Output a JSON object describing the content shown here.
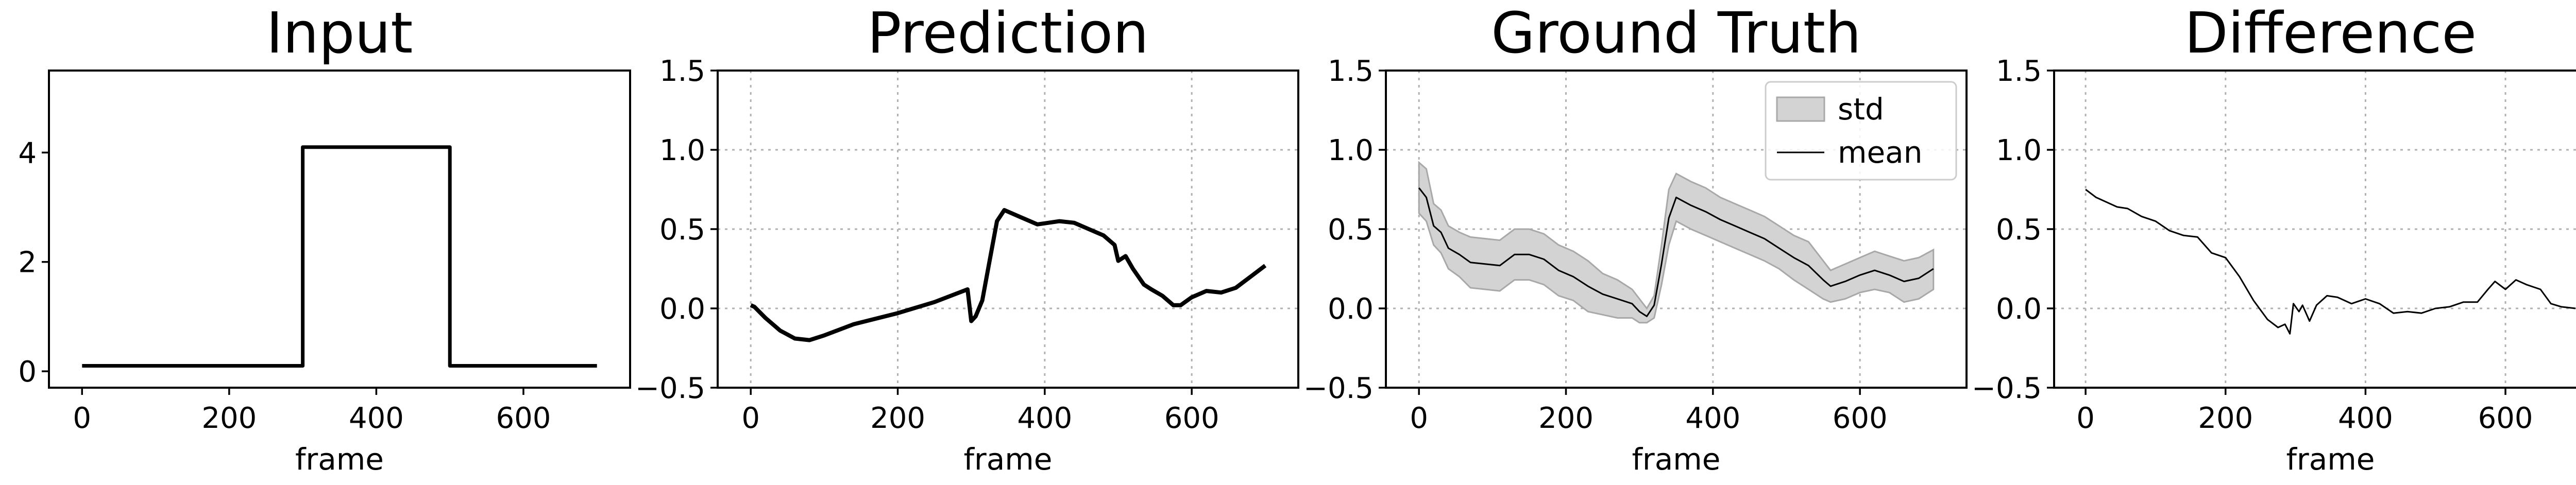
{
  "chart_data": [
    {
      "type": "line",
      "title": "Input",
      "xlabel": "frame",
      "ylabel": "",
      "xlim": [
        -45,
        745
      ],
      "ylim": [
        -0.3,
        5.5
      ],
      "xticks": [
        0,
        200,
        400,
        600
      ],
      "yticks": [
        0,
        2,
        4
      ],
      "grid": false,
      "series": [
        {
          "values": [
            [
              0,
              0.1
            ],
            [
              300,
              0.1
            ],
            [
              300,
              4.1
            ],
            [
              500,
              4.1
            ],
            [
              500,
              0.1
            ],
            [
              700,
              0.1
            ]
          ]
        }
      ]
    },
    {
      "type": "line",
      "title": "Prediction",
      "xlabel": "frame",
      "ylabel": "",
      "xlim": [
        -45,
        745
      ],
      "ylim": [
        -0.5,
        1.5
      ],
      "xticks": [
        0,
        200,
        400,
        600
      ],
      "yticks": [
        -0.5,
        0.0,
        0.5,
        1.0,
        1.5
      ],
      "grid": true,
      "series": [
        {
          "values": [
            [
              0,
              0.02
            ],
            [
              5,
              0.01
            ],
            [
              20,
              -0.06
            ],
            [
              40,
              -0.14
            ],
            [
              60,
              -0.19
            ],
            [
              80,
              -0.2
            ],
            [
              100,
              -0.17
            ],
            [
              140,
              -0.1
            ],
            [
              200,
              -0.03
            ],
            [
              250,
              0.04
            ],
            [
              295,
              0.12
            ],
            [
              300,
              -0.08
            ],
            [
              306,
              -0.05
            ],
            [
              315,
              0.05
            ],
            [
              325,
              0.3
            ],
            [
              335,
              0.55
            ],
            [
              345,
              0.62
            ],
            [
              365,
              0.58
            ],
            [
              390,
              0.53
            ],
            [
              420,
              0.55
            ],
            [
              440,
              0.54
            ],
            [
              460,
              0.5
            ],
            [
              480,
              0.46
            ],
            [
              495,
              0.4
            ],
            [
              500,
              0.3
            ],
            [
              510,
              0.33
            ],
            [
              520,
              0.25
            ],
            [
              535,
              0.15
            ],
            [
              545,
              0.12
            ],
            [
              560,
              0.08
            ],
            [
              575,
              0.02
            ],
            [
              585,
              0.02
            ],
            [
              600,
              0.07
            ],
            [
              620,
              0.11
            ],
            [
              640,
              0.1
            ],
            [
              660,
              0.13
            ],
            [
              680,
              0.2
            ],
            [
              700,
              0.27
            ]
          ]
        }
      ]
    },
    {
      "type": "area",
      "title": "Ground Truth",
      "xlabel": "frame",
      "ylabel": "",
      "xlim": [
        -45,
        745
      ],
      "ylim": [
        -0.5,
        1.5
      ],
      "xticks": [
        0,
        200,
        400,
        600
      ],
      "yticks": [
        -0.5,
        0.0,
        0.5,
        1.0,
        1.5
      ],
      "grid": true,
      "legend": {
        "position": "top-right",
        "entries": [
          "std",
          "mean"
        ]
      },
      "series": [
        {
          "name": "std",
          "x": [
            0,
            10,
            20,
            30,
            40,
            55,
            70,
            90,
            110,
            130,
            150,
            170,
            190,
            210,
            230,
            250,
            270,
            290,
            300,
            310,
            320,
            330,
            340,
            350,
            370,
            390,
            410,
            430,
            450,
            470,
            490,
            510,
            530,
            550,
            560,
            580,
            600,
            620,
            640,
            660,
            680,
            700
          ],
          "upper": [
            0.92,
            0.88,
            0.66,
            0.62,
            0.52,
            0.48,
            0.45,
            0.44,
            0.43,
            0.5,
            0.5,
            0.47,
            0.4,
            0.36,
            0.3,
            0.22,
            0.18,
            0.12,
            0.06,
            0.0,
            0.08,
            0.4,
            0.75,
            0.85,
            0.8,
            0.76,
            0.7,
            0.66,
            0.62,
            0.58,
            0.52,
            0.46,
            0.42,
            0.3,
            0.24,
            0.28,
            0.32,
            0.36,
            0.33,
            0.3,
            0.32,
            0.37
          ],
          "lower": [
            0.6,
            0.55,
            0.4,
            0.35,
            0.25,
            0.2,
            0.13,
            0.12,
            0.11,
            0.18,
            0.18,
            0.15,
            0.08,
            0.05,
            -0.02,
            -0.04,
            -0.06,
            -0.06,
            -0.09,
            -0.09,
            -0.06,
            0.15,
            0.4,
            0.55,
            0.5,
            0.46,
            0.42,
            0.38,
            0.34,
            0.3,
            0.25,
            0.18,
            0.12,
            0.06,
            0.04,
            0.06,
            0.1,
            0.12,
            0.1,
            0.04,
            0.06,
            0.12
          ]
        },
        {
          "name": "mean",
          "x": [
            0,
            10,
            20,
            30,
            40,
            55,
            70,
            90,
            110,
            130,
            150,
            170,
            190,
            210,
            230,
            250,
            270,
            290,
            300,
            310,
            320,
            330,
            340,
            350,
            370,
            390,
            410,
            430,
            450,
            470,
            490,
            510,
            530,
            550,
            560,
            580,
            600,
            620,
            640,
            660,
            680,
            700
          ],
          "values": [
            0.76,
            0.7,
            0.52,
            0.48,
            0.38,
            0.34,
            0.29,
            0.28,
            0.27,
            0.34,
            0.34,
            0.31,
            0.24,
            0.2,
            0.14,
            0.09,
            0.06,
            0.03,
            -0.02,
            -0.05,
            0.02,
            0.28,
            0.57,
            0.7,
            0.65,
            0.61,
            0.56,
            0.52,
            0.48,
            0.44,
            0.38,
            0.32,
            0.27,
            0.18,
            0.14,
            0.17,
            0.21,
            0.24,
            0.21,
            0.17,
            0.19,
            0.25
          ]
        }
      ]
    },
    {
      "type": "line",
      "title": "Difference",
      "xlabel": "frame",
      "ylabel": "",
      "xlim": [
        -45,
        745
      ],
      "ylim": [
        -0.5,
        1.5
      ],
      "xticks": [
        0,
        200,
        400,
        600
      ],
      "yticks": [
        -0.5,
        0.0,
        0.5,
        1.0,
        1.5
      ],
      "grid": true,
      "series": [
        {
          "values": [
            [
              0,
              0.75
            ],
            [
              15,
              0.7
            ],
            [
              30,
              0.67
            ],
            [
              45,
              0.64
            ],
            [
              60,
              0.63
            ],
            [
              80,
              0.58
            ],
            [
              100,
              0.55
            ],
            [
              120,
              0.49
            ],
            [
              140,
              0.46
            ],
            [
              160,
              0.45
            ],
            [
              180,
              0.35
            ],
            [
              200,
              0.32
            ],
            [
              220,
              0.2
            ],
            [
              240,
              0.05
            ],
            [
              260,
              -0.07
            ],
            [
              275,
              -0.12
            ],
            [
              285,
              -0.1
            ],
            [
              292,
              -0.16
            ],
            [
              297,
              0.03
            ],
            [
              305,
              -0.02
            ],
            [
              310,
              0.02
            ],
            [
              320,
              -0.08
            ],
            [
              330,
              0.02
            ],
            [
              345,
              0.08
            ],
            [
              360,
              0.07
            ],
            [
              380,
              0.03
            ],
            [
              400,
              0.06
            ],
            [
              420,
              0.03
            ],
            [
              440,
              -0.03
            ],
            [
              460,
              -0.02
            ],
            [
              480,
              -0.03
            ],
            [
              500,
              0.0
            ],
            [
              520,
              0.01
            ],
            [
              540,
              0.04
            ],
            [
              560,
              0.04
            ],
            [
              575,
              0.12
            ],
            [
              585,
              0.17
            ],
            [
              600,
              0.12
            ],
            [
              615,
              0.18
            ],
            [
              630,
              0.15
            ],
            [
              650,
              0.12
            ],
            [
              665,
              0.03
            ],
            [
              680,
              0.01
            ],
            [
              700,
              0.0
            ]
          ]
        }
      ]
    }
  ]
}
